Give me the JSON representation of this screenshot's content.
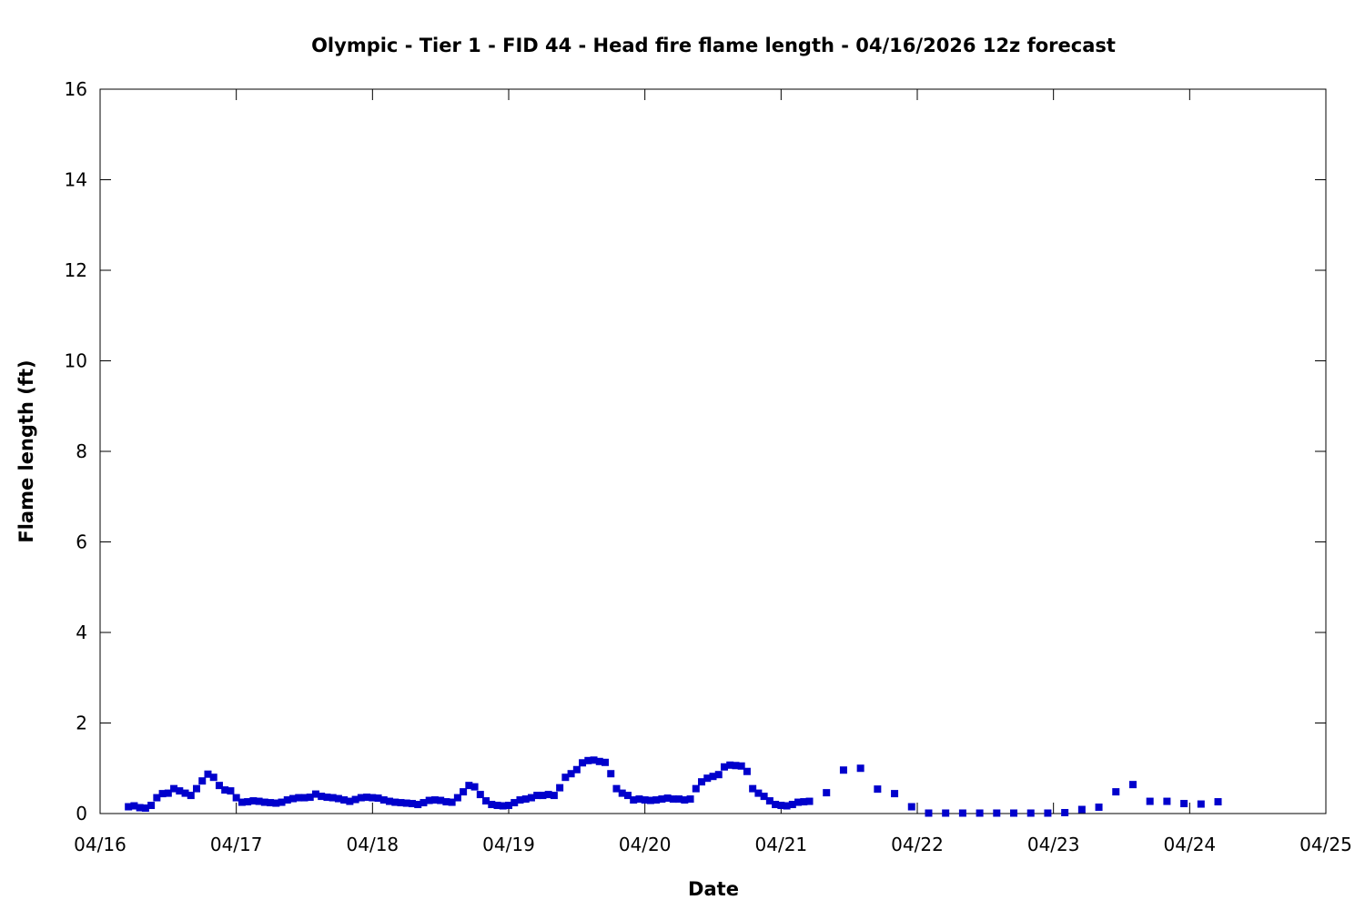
{
  "chart_data": {
    "type": "scatter",
    "title": "Olympic - Tier 1 - FID 44 - Head fire flame length - 04/16/2026 12z forecast",
    "xlabel": "Date",
    "ylabel": "Flame length (ft)",
    "xlim": [
      "04/16",
      "04/25"
    ],
    "ylim": [
      0,
      16
    ],
    "x_ticks": [
      "04/16",
      "04/17",
      "04/18",
      "04/19",
      "04/20",
      "04/21",
      "04/22",
      "04/23",
      "04/24",
      "04/25"
    ],
    "y_ticks": [
      0,
      2,
      4,
      6,
      8,
      10,
      12,
      14,
      16
    ],
    "grid": false,
    "marker": "square",
    "color": "#0000cc",
    "series": [
      {
        "x": [
          "04/16 05:00",
          "04/16 06:00",
          "04/16 07:00",
          "04/16 08:00",
          "04/16 09:00",
          "04/16 10:00",
          "04/16 11:00",
          "04/16 12:00",
          "04/16 13:00",
          "04/16 14:00",
          "04/16 15:00",
          "04/16 16:00",
          "04/16 17:00",
          "04/16 18:00",
          "04/16 19:00",
          "04/16 20:00",
          "04/16 21:00",
          "04/16 22:00",
          "04/16 23:00",
          "04/17 00:00",
          "04/17 01:00",
          "04/17 02:00",
          "04/17 03:00",
          "04/17 04:00",
          "04/17 05:00",
          "04/17 06:00",
          "04/17 07:00",
          "04/17 08:00",
          "04/17 09:00",
          "04/17 10:00",
          "04/17 11:00",
          "04/17 12:00",
          "04/17 13:00",
          "04/17 14:00",
          "04/17 15:00",
          "04/17 16:00",
          "04/17 17:00",
          "04/17 18:00",
          "04/17 19:00",
          "04/17 20:00",
          "04/17 21:00",
          "04/17 22:00",
          "04/17 23:00",
          "04/18 00:00",
          "04/18 01:00",
          "04/18 02:00",
          "04/18 03:00",
          "04/18 04:00",
          "04/18 05:00",
          "04/18 06:00",
          "04/18 07:00",
          "04/18 08:00",
          "04/18 09:00",
          "04/18 10:00",
          "04/18 11:00",
          "04/18 12:00",
          "04/18 13:00",
          "04/18 14:00",
          "04/18 15:00",
          "04/18 16:00",
          "04/18 17:00",
          "04/18 18:00",
          "04/18 19:00",
          "04/18 20:00",
          "04/18 21:00",
          "04/18 22:00",
          "04/18 23:00",
          "04/19 00:00",
          "04/19 01:00",
          "04/19 02:00",
          "04/19 03:00",
          "04/19 04:00",
          "04/19 05:00",
          "04/19 06:00",
          "04/19 07:00",
          "04/19 08:00",
          "04/19 09:00",
          "04/19 10:00",
          "04/19 11:00",
          "04/19 12:00",
          "04/19 13:00",
          "04/19 14:00",
          "04/19 15:00",
          "04/19 16:00",
          "04/19 17:00",
          "04/19 18:00",
          "04/19 19:00",
          "04/19 20:00",
          "04/19 21:00",
          "04/19 22:00",
          "04/19 23:00",
          "04/20 00:00",
          "04/20 01:00",
          "04/20 02:00",
          "04/20 03:00",
          "04/20 04:00",
          "04/20 05:00",
          "04/20 06:00",
          "04/20 07:00",
          "04/20 08:00",
          "04/20 09:00",
          "04/20 10:00",
          "04/20 11:00",
          "04/20 12:00",
          "04/20 13:00",
          "04/20 14:00",
          "04/20 15:00",
          "04/20 16:00",
          "04/20 17:00",
          "04/20 18:00",
          "04/20 19:00",
          "04/20 20:00",
          "04/20 21:00",
          "04/20 22:00",
          "04/20 23:00",
          "04/21 00:00",
          "04/21 01:00",
          "04/21 02:00",
          "04/21 03:00",
          "04/21 04:00",
          "04/21 05:00",
          "04/21 08:00",
          "04/21 11:00",
          "04/21 14:00",
          "04/21 17:00",
          "04/21 20:00",
          "04/21 23:00",
          "04/22 02:00",
          "04/22 05:00",
          "04/22 08:00",
          "04/22 11:00",
          "04/22 14:00",
          "04/22 17:00",
          "04/22 20:00",
          "04/22 23:00",
          "04/23 02:00",
          "04/23 05:00",
          "04/23 08:00",
          "04/23 11:00",
          "04/23 14:00",
          "04/23 17:00",
          "04/23 20:00",
          "04/23 23:00",
          "04/24 02:00",
          "04/24 05:00"
        ],
        "y": [
          0.15,
          0.17,
          0.13,
          0.12,
          0.18,
          0.35,
          0.44,
          0.45,
          0.55,
          0.5,
          0.45,
          0.4,
          0.55,
          0.72,
          0.87,
          0.8,
          0.62,
          0.52,
          0.5,
          0.35,
          0.25,
          0.26,
          0.28,
          0.27,
          0.25,
          0.24,
          0.23,
          0.25,
          0.3,
          0.33,
          0.35,
          0.35,
          0.36,
          0.43,
          0.38,
          0.36,
          0.35,
          0.33,
          0.3,
          0.27,
          0.31,
          0.35,
          0.36,
          0.35,
          0.34,
          0.3,
          0.27,
          0.25,
          0.24,
          0.23,
          0.22,
          0.2,
          0.24,
          0.29,
          0.3,
          0.29,
          0.26,
          0.25,
          0.35,
          0.48,
          0.62,
          0.59,
          0.42,
          0.28,
          0.2,
          0.18,
          0.17,
          0.18,
          0.24,
          0.3,
          0.32,
          0.35,
          0.4,
          0.4,
          0.42,
          0.4,
          0.57,
          0.8,
          0.88,
          0.97,
          1.12,
          1.17,
          1.18,
          1.15,
          1.13,
          0.88,
          0.55,
          0.45,
          0.4,
          0.3,
          0.32,
          0.3,
          0.29,
          0.3,
          0.32,
          0.34,
          0.32,
          0.32,
          0.3,
          0.32,
          0.55,
          0.7,
          0.78,
          0.82,
          0.86,
          1.03,
          1.07,
          1.06,
          1.05,
          0.93,
          0.55,
          0.45,
          0.38,
          0.28,
          0.2,
          0.18,
          0.17,
          0.2,
          0.25,
          0.26,
          0.27,
          0.46,
          0.96,
          1.0,
          0.54,
          0.44,
          0.15,
          0.01,
          0.01,
          0.01,
          0.01,
          0.01,
          0.01,
          0.01,
          0.01,
          0.02,
          0.09,
          0.14,
          0.48,
          0.64,
          0.27,
          0.27,
          0.22,
          0.21,
          0.26
        ]
      }
    ]
  }
}
